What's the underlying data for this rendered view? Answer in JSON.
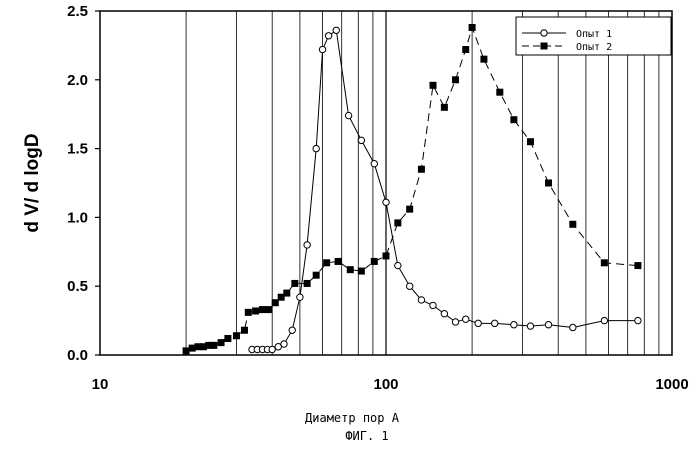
{
  "chart_data": {
    "type": "scatter",
    "xscale": "log",
    "xlim": [
      10,
      1000
    ],
    "ylim": [
      0,
      2.5
    ],
    "xticks": [
      10,
      100,
      1000
    ],
    "xtick_labels": [
      "10",
      "100",
      "1000"
    ],
    "yticks": [
      0,
      0.5,
      1,
      1.5,
      2,
      2.5
    ],
    "ytick_labels": [
      "0.0",
      "0.5",
      "1.0",
      "1.5",
      "2.0",
      "2.5"
    ],
    "xlabel": "Диаметр пор А",
    "ylabel": "d V/ d logD",
    "caption": "ФИГ. 1",
    "grid": "vertical log gridlines",
    "legend_position": "top-right",
    "series": [
      {
        "name": "Опыт 1",
        "marker": "open-circle",
        "line": "solid",
        "color": "#000000",
        "x": [
          34,
          35.5,
          37,
          38.5,
          40,
          42,
          44,
          47,
          50,
          53,
          57,
          60,
          63,
          67,
          74,
          82,
          91,
          100,
          110,
          121,
          133,
          146,
          160,
          175,
          190,
          210,
          240,
          280,
          320,
          370,
          450,
          580,
          760
        ],
        "y": [
          0.04,
          0.04,
          0.04,
          0.04,
          0.04,
          0.06,
          0.08,
          0.18,
          0.42,
          0.8,
          1.5,
          2.22,
          2.32,
          2.36,
          1.74,
          1.56,
          1.39,
          1.11,
          0.65,
          0.5,
          0.4,
          0.36,
          0.3,
          0.24,
          0.26,
          0.23,
          0.23,
          0.22,
          0.21,
          0.22,
          0.2,
          0.25,
          0.25
        ]
      },
      {
        "name": "Опыт 2",
        "marker": "filled-square",
        "line": "dashed",
        "color": "#000000",
        "x": [
          20,
          21,
          22,
          23,
          24,
          25,
          26.5,
          28,
          30,
          32,
          33,
          35,
          37,
          39,
          41,
          43,
          45,
          48,
          53,
          57,
          62,
          68,
          75,
          82,
          91,
          100,
          110,
          121,
          133,
          146,
          160,
          175,
          190,
          200,
          220,
          250,
          280,
          320,
          370,
          450,
          580,
          760
        ],
        "y": [
          0.03,
          0.05,
          0.06,
          0.06,
          0.07,
          0.07,
          0.09,
          0.12,
          0.14,
          0.18,
          0.31,
          0.32,
          0.33,
          0.33,
          0.38,
          0.42,
          0.45,
          0.52,
          0.52,
          0.58,
          0.67,
          0.68,
          0.62,
          0.61,
          0.68,
          0.72,
          0.96,
          1.06,
          1.35,
          1.96,
          1.8,
          2.0,
          2.22,
          2.38,
          2.15,
          1.91,
          1.71,
          1.55,
          1.25,
          0.95,
          0.67,
          0.65
        ]
      }
    ]
  }
}
